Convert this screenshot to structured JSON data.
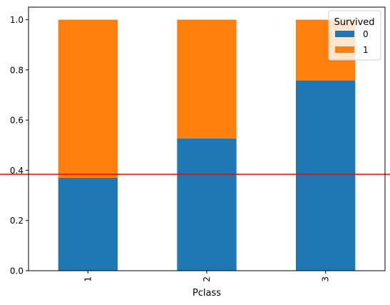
{
  "chart_data": {
    "type": "bar",
    "stacked": true,
    "categories": [
      "1",
      "2",
      "3"
    ],
    "series": [
      {
        "name": "0",
        "color": "#1f77b4",
        "values": [
          0.37,
          0.527,
          0.758
        ]
      },
      {
        "name": "1",
        "color": "#ff7f0e",
        "values": [
          0.63,
          0.473,
          0.242
        ]
      }
    ],
    "title": "",
    "xlabel": "Pclass",
    "ylabel": "",
    "ylim": [
      0,
      1.05
    ],
    "yticks": [
      "0.0",
      "0.2",
      "0.4",
      "0.6",
      "0.8",
      "1.0"
    ],
    "ytick_values": [
      0,
      0.2,
      0.4,
      0.6,
      0.8,
      1.0
    ],
    "xtick_rotation": "vertical",
    "legend": {
      "title": "Survived",
      "placement": "top-right"
    },
    "reference_line": {
      "orientation": "horizontal",
      "y": 0.384,
      "color": "#ff0000"
    },
    "grid": false
  }
}
